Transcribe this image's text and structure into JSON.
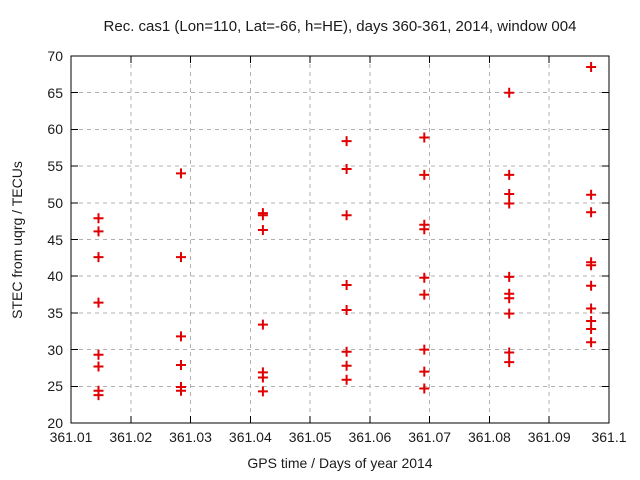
{
  "chart_data": {
    "type": "scatter",
    "title": "Rec. cas1 (Lon=110, Lat=-66, h=HE), days 360-361, 2014, window 004",
    "xlabel": "GPS time / Days of year 2014",
    "ylabel": "STEC from uqrg / TECUs",
    "xlim": [
      361.01,
      361.1
    ],
    "ylim": [
      20,
      70
    ],
    "grid": true,
    "legend": "none",
    "marker": "plus",
    "colors": {
      "marker": "#e00000",
      "grid": "#b0b0b0",
      "frame": "#000000",
      "text": "#1a1a1a",
      "background": "#ffffff"
    },
    "xticks": [
      {
        "v": 361.01,
        "t": "361.01"
      },
      {
        "v": 361.02,
        "t": "361.02"
      },
      {
        "v": 361.03,
        "t": "361.03"
      },
      {
        "v": 361.04,
        "t": "361.04"
      },
      {
        "v": 361.05,
        "t": "361.05"
      },
      {
        "v": 361.06,
        "t": "361.06"
      },
      {
        "v": 361.07,
        "t": "361.07"
      },
      {
        "v": 361.08,
        "t": "361.08"
      },
      {
        "v": 361.09,
        "t": "361.09"
      },
      {
        "v": 361.1,
        "t": "361.1"
      }
    ],
    "yticks": [
      {
        "v": 20,
        "t": "20"
      },
      {
        "v": 25,
        "t": "25"
      },
      {
        "v": 30,
        "t": "30"
      },
      {
        "v": 35,
        "t": "35"
      },
      {
        "v": 40,
        "t": "40"
      },
      {
        "v": 45,
        "t": "45"
      },
      {
        "v": 50,
        "t": "50"
      },
      {
        "v": 55,
        "t": "55"
      },
      {
        "v": 60,
        "t": "60"
      },
      {
        "v": 65,
        "t": "65"
      },
      {
        "v": 70,
        "t": "70"
      }
    ],
    "series": [
      {
        "name": "stec-uqrg",
        "points": [
          [
            361.0146,
            47.9
          ],
          [
            361.0146,
            46.1
          ],
          [
            361.0146,
            42.6
          ],
          [
            361.0146,
            36.4
          ],
          [
            361.0146,
            29.3
          ],
          [
            361.0146,
            27.7
          ],
          [
            361.0146,
            24.4
          ],
          [
            361.0146,
            23.8
          ],
          [
            361.0284,
            54.0
          ],
          [
            361.0284,
            42.6
          ],
          [
            361.0284,
            31.8
          ],
          [
            361.0284,
            27.9
          ],
          [
            361.0284,
            24.9
          ],
          [
            361.0284,
            24.4
          ],
          [
            361.0421,
            48.6
          ],
          [
            361.0421,
            48.3
          ],
          [
            361.0421,
            46.3
          ],
          [
            361.0421,
            33.4
          ],
          [
            361.0421,
            26.9
          ],
          [
            361.0421,
            26.2
          ],
          [
            361.0421,
            24.3
          ],
          [
            361.0561,
            58.4
          ],
          [
            361.0561,
            54.6
          ],
          [
            361.0561,
            48.3
          ],
          [
            361.0561,
            38.8
          ],
          [
            361.0561,
            35.4
          ],
          [
            361.0561,
            29.7
          ],
          [
            361.0561,
            27.8
          ],
          [
            361.0561,
            25.9
          ],
          [
            361.0691,
            58.9
          ],
          [
            361.0691,
            53.8
          ],
          [
            361.0691,
            47.0
          ],
          [
            361.0691,
            46.4
          ],
          [
            361.0691,
            39.8
          ],
          [
            361.0691,
            37.5
          ],
          [
            361.0691,
            30.0
          ],
          [
            361.0691,
            27.0
          ],
          [
            361.0691,
            24.7
          ],
          [
            361.0833,
            65.0
          ],
          [
            361.0833,
            53.8
          ],
          [
            361.0833,
            51.2
          ],
          [
            361.0833,
            49.9
          ],
          [
            361.0833,
            39.9
          ],
          [
            361.0833,
            37.6
          ],
          [
            361.0833,
            37.0
          ],
          [
            361.0833,
            34.9
          ],
          [
            361.0833,
            29.6
          ],
          [
            361.0833,
            28.3
          ],
          [
            361.097,
            68.5
          ],
          [
            361.097,
            51.1
          ],
          [
            361.097,
            48.7
          ],
          [
            361.097,
            41.9
          ],
          [
            361.097,
            41.5
          ],
          [
            361.097,
            38.7
          ],
          [
            361.097,
            35.6
          ],
          [
            361.097,
            33.9
          ],
          [
            361.097,
            32.8
          ],
          [
            361.097,
            31.0
          ]
        ]
      }
    ]
  }
}
